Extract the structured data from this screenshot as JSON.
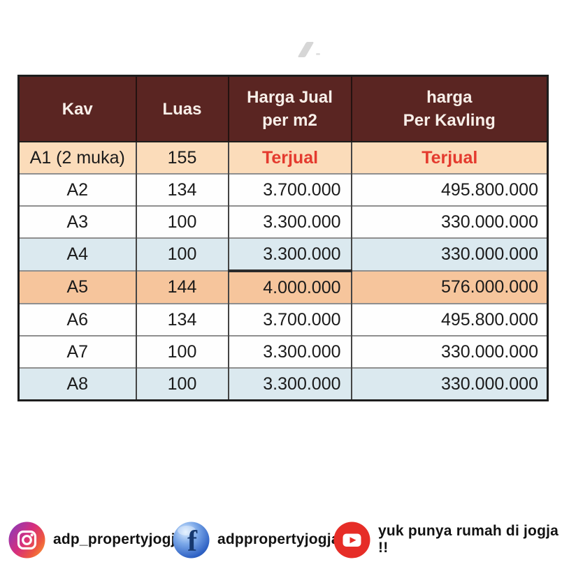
{
  "watermark": {
    "name": "gray-slash-mark"
  },
  "table": {
    "columns": [
      {
        "key": "kav",
        "label_lines": [
          "Kav"
        ]
      },
      {
        "key": "luas",
        "label_lines": [
          "Luas"
        ]
      },
      {
        "key": "harga_m2",
        "label_lines": [
          "Harga Jual",
          "per m2"
        ]
      },
      {
        "key": "harga_kavling",
        "label_lines": [
          "harga",
          "Per Kavling"
        ]
      }
    ],
    "rows": [
      {
        "kav": "A1 (2 muka)",
        "luas": "155",
        "harga_m2": "Terjual",
        "harga_kavling": "Terjual",
        "style": "peach",
        "sold": true
      },
      {
        "kav": "A2",
        "luas": "134",
        "harga_m2": "3.700.000",
        "harga_kavling": "495.800.000",
        "style": "white"
      },
      {
        "kav": "A3",
        "luas": "100",
        "harga_m2": "3.300.000",
        "harga_kavling": "330.000.000",
        "style": "white"
      },
      {
        "kav": "A4",
        "luas": "100",
        "harga_m2": "3.300.000",
        "harga_kavling": "330.000.000",
        "style": "blue"
      },
      {
        "kav": "A5",
        "luas": "144",
        "harga_m2": "4.000.000",
        "harga_kavling": "576.000.000",
        "style": "orange",
        "thick_top_m2": true
      },
      {
        "kav": "A6",
        "luas": "134",
        "harga_m2": "3.700.000",
        "harga_kavling": "495.800.000",
        "style": "white"
      },
      {
        "kav": "A7",
        "luas": "100",
        "harga_m2": "3.300.000",
        "harga_kavling": "330.000.000",
        "style": "white"
      },
      {
        "kav": "A8",
        "luas": "100",
        "harga_m2": "3.300.000",
        "harga_kavling": "330.000.000",
        "style": "blue"
      }
    ]
  },
  "chart_data": {
    "type": "table",
    "title": "",
    "columns": [
      "Kav",
      "Luas",
      "Harga Jual per m2",
      "harga Per Kavling"
    ],
    "rows": [
      [
        "A1 (2 muka)",
        155,
        "Terjual",
        "Terjual"
      ],
      [
        "A2",
        134,
        "3.700.000",
        "495.800.000"
      ],
      [
        "A3",
        100,
        "3.300.000",
        "330.000.000"
      ],
      [
        "A4",
        100,
        "3.300.000",
        "330.000.000"
      ],
      [
        "A5",
        144,
        "4.000.000",
        "576.000.000"
      ],
      [
        "A6",
        134,
        "3.700.000",
        "495.800.000"
      ],
      [
        "A7",
        100,
        "3.300.000",
        "330.000.000"
      ],
      [
        "A8",
        100,
        "3.300.000",
        "330.000.000"
      ]
    ]
  },
  "footer": {
    "instagram": {
      "icon": "instagram-icon",
      "handle": "adp_propertyjogja"
    },
    "facebook": {
      "icon": "facebook-icon",
      "handle": "adppropertyjogja"
    },
    "youtube": {
      "icon": "youtube-icon",
      "handle": "yuk punya rumah di jogja !!"
    }
  },
  "colors": {
    "header_bg": "#5a2522",
    "header_text": "#f8efe9",
    "row_peach": "#fbdcba",
    "row_orange": "#f6c59c",
    "row_blue": "#dbe9ef",
    "row_white": "#fefefe",
    "sold_red": "#e43a2e",
    "data_text": "#1b1b1b",
    "youtube_red": "#e62d27",
    "facebook_blue": "#2f62c4"
  }
}
